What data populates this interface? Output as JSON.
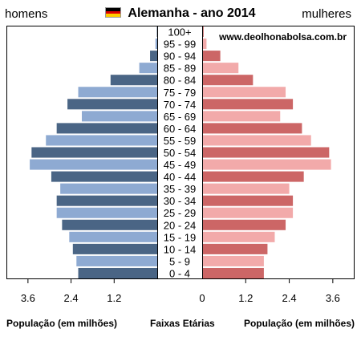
{
  "header": {
    "left_label": "homens",
    "right_label": "mulheres",
    "title": "Alemanha - ano 2014",
    "flag_colors": [
      "#000000",
      "#dd0000",
      "#ffce00"
    ]
  },
  "footer": {
    "left_axis_label": "População (em milhões)",
    "center_label": "Faixas Etárias",
    "right_axis_label": "População (em milhões)"
  },
  "chart_data": {
    "type": "bar",
    "orientation": "horizontal-population-pyramid",
    "title": "Alemanha - ano 2014",
    "watermark": "www.deolhonabolsa.com.br",
    "categories": [
      "100+",
      "95 - 99",
      "90 - 94",
      "85 - 89",
      "80 - 84",
      "75 - 79",
      "70 - 74",
      "65 - 69",
      "60 - 64",
      "55 - 59",
      "50 - 54",
      "45 - 49",
      "40 - 44",
      "35 - 39",
      "30 - 34",
      "25 - 29",
      "20 - 24",
      "15 - 19",
      "10 - 14",
      "5 - 9",
      "0 - 4"
    ],
    "series": [
      {
        "name": "homens",
        "side": "left",
        "colors": [
          "#4a6585",
          "#8eaad2"
        ],
        "values": [
          0.01,
          0.05,
          0.2,
          0.5,
          1.3,
          2.2,
          2.5,
          2.1,
          2.8,
          3.1,
          3.5,
          3.55,
          2.95,
          2.7,
          2.8,
          2.8,
          2.65,
          2.45,
          2.35,
          2.25,
          2.2
        ]
      },
      {
        "name": "mulheres",
        "side": "right",
        "colors": [
          "#cc6666",
          "#f2aaaa"
        ],
        "values": [
          0.04,
          0.12,
          0.5,
          1.0,
          1.4,
          2.3,
          2.5,
          2.15,
          2.75,
          3.0,
          3.5,
          3.55,
          2.8,
          2.4,
          2.5,
          2.5,
          2.3,
          2.0,
          1.8,
          1.7,
          1.7
        ]
      }
    ],
    "left_ticks": [
      "3.6",
      "2.4",
      "1.2"
    ],
    "center_tick": "0",
    "right_ticks": [
      "1.2",
      "2.4",
      "3.6"
    ],
    "xlim": [
      0,
      4.2
    ],
    "xlabel": "População (em milhões)"
  }
}
